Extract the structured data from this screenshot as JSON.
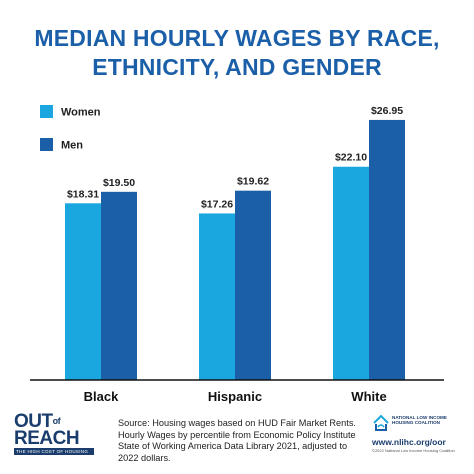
{
  "header": {
    "title_line1": "MEDIAN HOURLY WAGES BY RACE,",
    "title_line2": "ETHNICITY, AND GENDER"
  },
  "chart_data": {
    "type": "bar",
    "title": "MEDIAN HOURLY WAGES BY RACE, ETHNICITY, AND GENDER",
    "categories": [
      "Black",
      "Hispanic",
      "White"
    ],
    "series": [
      {
        "name": "Women",
        "values": [
          18.31,
          17.26,
          22.1
        ],
        "labels": [
          "$18.31",
          "$17.26",
          "$22.10"
        ],
        "color": "#1aa7e0"
      },
      {
        "name": "Men",
        "values": [
          19.5,
          19.62,
          26.95
        ],
        "labels": [
          "$19.50",
          "$19.62",
          "$26.95"
        ],
        "color": "#1b5fa8"
      }
    ],
    "ylim": [
      0,
      30
    ],
    "grid": false,
    "legend": "top-left",
    "axis_color": "#111111"
  },
  "footer": {
    "logo_line1": "OUT",
    "logo_of": "of",
    "logo_line2": "REACH",
    "logo_tagline": "THE HIGH COST OF HOUSING",
    "source": "Source: Housing wages based on HUD Fair Market Rents. Hourly Wages by percentile from Economic Policy Institute State of Working America Data Library 2021, adjusted to 2022 dollars.",
    "org_name": "NATIONAL LOW INCOME HOUSING COALITION",
    "org_url": "www.nlihc.org/oor",
    "org_copyright": "©2022 National Low Income Housing Coalition",
    "brand_color": "#1b3d6d"
  }
}
